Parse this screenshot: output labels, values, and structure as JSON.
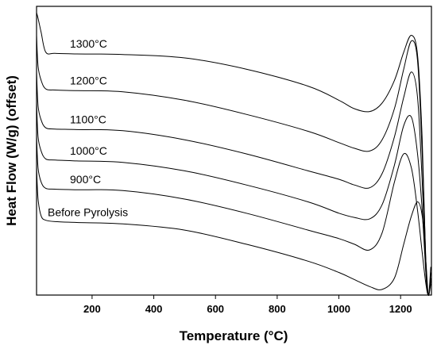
{
  "chart_data": {
    "type": "line",
    "title": "",
    "xlabel": "Temperature (°C)",
    "ylabel": "Heat Flow (W/g) (offset)",
    "xlim": [
      20,
      1300
    ],
    "xticks": [
      200,
      400,
      600,
      800,
      1000,
      1200
    ],
    "grid": false,
    "legend": "inline labels",
    "y_offset_units": true,
    "x": [
      20,
      25,
      35,
      50,
      80,
      150,
      300,
      500,
      700,
      900,
      1000,
      1050,
      1100,
      1140,
      1180,
      1210,
      1235,
      1255,
      1270,
      1282,
      1290,
      1298
    ],
    "series": [
      {
        "name": "1300°C",
        "label": "1300°C",
        "values": [
          100.0,
          98.0,
          93.0,
          86.0,
          85.6,
          85.4,
          85.2,
          84.0,
          80.0,
          74.0,
          69.0,
          66.0,
          65.0,
          68.0,
          76.0,
          86.0,
          92.0,
          85.0,
          55.0,
          10.0,
          0.0,
          10.0
        ]
      },
      {
        "name": "1200°C",
        "label": "1200°C",
        "values": [
          92.0,
          81.0,
          76.0,
          73.0,
          72.6,
          72.4,
          72.0,
          69.0,
          64.0,
          58.0,
          54.0,
          52.0,
          51.0,
          55.0,
          66.0,
          80.0,
          90.0,
          83.0,
          50.0,
          12.0,
          0.0,
          8.0
        ]
      },
      {
        "name": "1100°C",
        "label": "1100°C",
        "values": [
          79.0,
          67.0,
          62.0,
          59.2,
          58.8,
          58.6,
          58.2,
          55.0,
          50.0,
          44.0,
          41.0,
          39.0,
          38.0,
          43.0,
          56.0,
          70.0,
          79.0,
          70.0,
          40.0,
          8.0,
          0.0,
          6.0
        ]
      },
      {
        "name": "1000°C",
        "label": "1000°C",
        "values": [
          68.0,
          56.0,
          51.0,
          48.2,
          47.8,
          47.5,
          47.0,
          44.0,
          39.0,
          33.0,
          29.0,
          27.5,
          27.0,
          32.0,
          46.0,
          60.0,
          63.0,
          50.0,
          30.0,
          8.0,
          0.0,
          6.0
        ]
      },
      {
        "name": "900°C",
        "label": "900°C",
        "values": [
          56.0,
          45.0,
          40.0,
          37.8,
          37.5,
          37.3,
          37.0,
          34.0,
          29.0,
          23.0,
          20.0,
          18.0,
          16.0,
          22.0,
          40.0,
          50.0,
          45.0,
          30.0,
          15.0,
          4.0,
          0.0,
          4.0
        ]
      },
      {
        "name": "Before Pyrolysis",
        "label": "Before Pyrolysis",
        "values": [
          45.0,
          34.0,
          28.0,
          26.5,
          26.0,
          25.7,
          25.2,
          23.0,
          18.0,
          12.0,
          8.0,
          5.5,
          3.0,
          2.0,
          6.0,
          18.0,
          28.0,
          33.0,
          28.0,
          12.0,
          0.0,
          5.0
        ]
      }
    ]
  }
}
